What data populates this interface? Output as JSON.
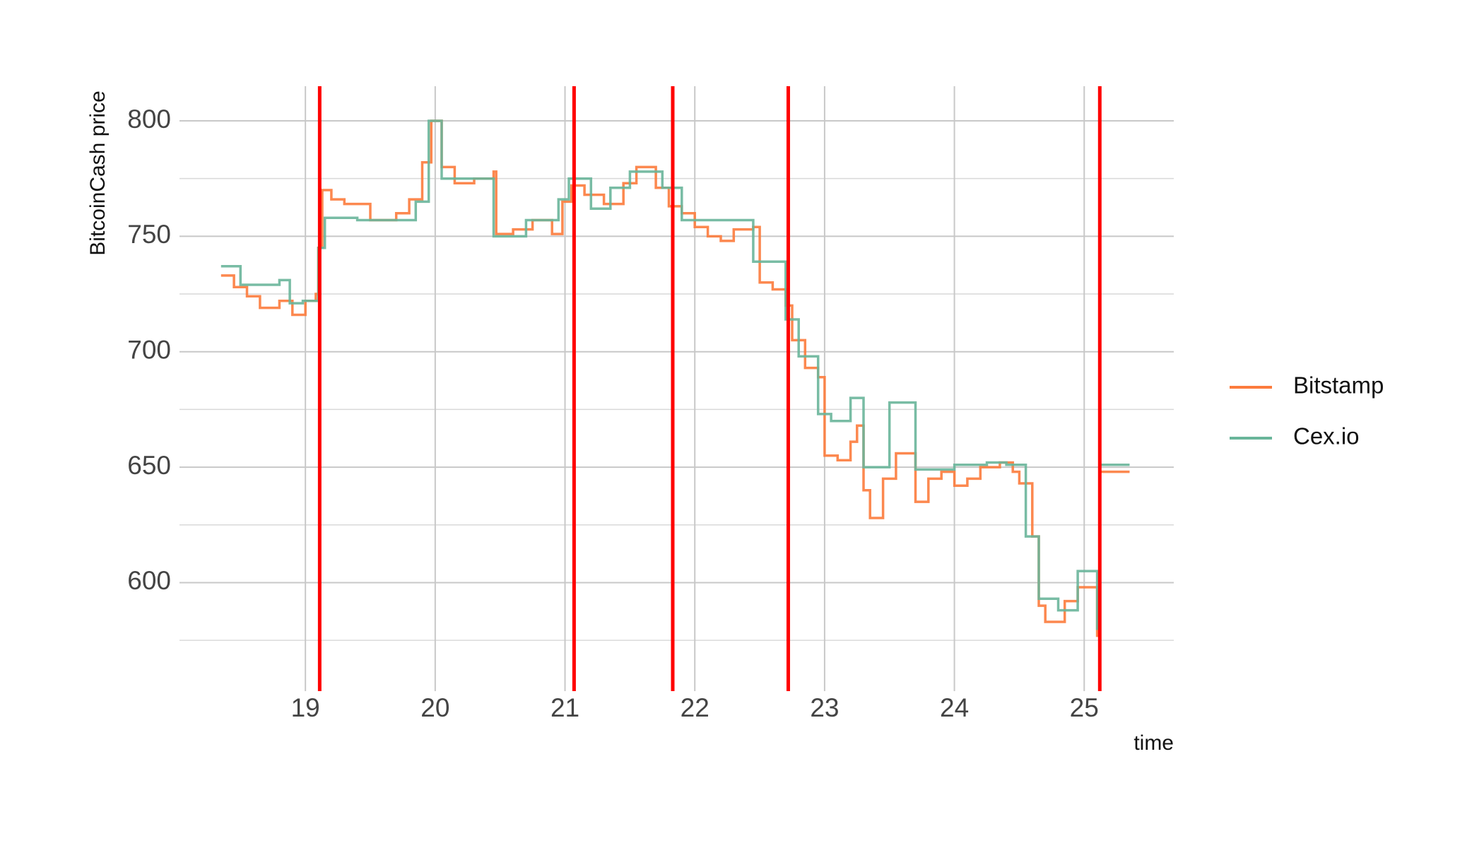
{
  "chart_data": {
    "type": "line",
    "step": true,
    "y_label": "BitcoinCash price",
    "x_label": "time",
    "xlim": [
      18.03,
      25.69
    ],
    "xticks": [
      19,
      20,
      21,
      22,
      23,
      24,
      25
    ],
    "ylim": [
      553,
      815
    ],
    "yticks": [
      600,
      650,
      700,
      750,
      800
    ],
    "yminorticks": [
      575,
      625,
      675,
      725,
      775
    ],
    "grid": true,
    "legend": "right",
    "vlines": {
      "color": "#ff0000",
      "values": [
        19.11,
        21.07,
        21.83,
        22.72,
        25.12
      ]
    },
    "series": [
      {
        "name": "Bitstamp",
        "color": "#fc7b3c",
        "x": [
          18.35,
          18.45,
          18.55,
          18.65,
          18.8,
          18.9,
          19.0,
          19.08,
          19.1,
          19.13,
          19.2,
          19.3,
          19.5,
          19.7,
          19.8,
          19.9,
          19.97,
          20.05,
          20.15,
          20.3,
          20.45,
          20.47,
          20.6,
          20.75,
          20.9,
          20.98,
          21.05,
          21.15,
          21.3,
          21.45,
          21.55,
          21.7,
          21.8,
          21.9,
          22.0,
          22.1,
          22.2,
          22.3,
          22.45,
          22.5,
          22.6,
          22.7,
          22.75,
          22.85,
          22.95,
          23.0,
          23.1,
          23.2,
          23.25,
          23.3,
          23.35,
          23.45,
          23.55,
          23.7,
          23.8,
          23.9,
          24.0,
          24.1,
          24.2,
          24.35,
          24.45,
          24.5,
          24.6,
          24.65,
          24.7,
          24.85,
          24.95,
          25.05,
          25.1,
          25.12,
          25.35
        ],
        "values": [
          733,
          728,
          724,
          719,
          722,
          716,
          722,
          725,
          745,
          770,
          766,
          764,
          757,
          760,
          766,
          782,
          800,
          780,
          773,
          775,
          778,
          751,
          753,
          757,
          751,
          765,
          772,
          768,
          764,
          773,
          780,
          771,
          763,
          760,
          754,
          750,
          748,
          753,
          754,
          730,
          727,
          720,
          705,
          693,
          689,
          655,
          653,
          661,
          668,
          640,
          628,
          645,
          656,
          635,
          645,
          648,
          642,
          645,
          650,
          652,
          648,
          643,
          620,
          590,
          583,
          592,
          598,
          598,
          577,
          648,
          648
        ]
      },
      {
        "name": "Cex.io",
        "color": "#69b59a",
        "x": [
          18.35,
          18.5,
          18.8,
          18.88,
          18.98,
          19.1,
          19.15,
          19.4,
          19.85,
          19.95,
          20.05,
          20.45,
          20.7,
          20.95,
          21.03,
          21.2,
          21.35,
          21.5,
          21.75,
          21.9,
          22.45,
          22.7,
          22.8,
          22.95,
          23.05,
          23.2,
          23.3,
          23.4,
          23.5,
          23.7,
          24.0,
          24.25,
          24.4,
          24.55,
          24.65,
          24.8,
          24.95,
          25.1,
          25.12,
          25.35
        ],
        "values": [
          737,
          729,
          731,
          721,
          722,
          745,
          758,
          757,
          765,
          800,
          775,
          750,
          757,
          766,
          775,
          762,
          771,
          778,
          771,
          757,
          739,
          714,
          698,
          673,
          670,
          680,
          650,
          650,
          678,
          649,
          651,
          652,
          651,
          620,
          593,
          588,
          605,
          580,
          651,
          651
        ]
      }
    ]
  }
}
